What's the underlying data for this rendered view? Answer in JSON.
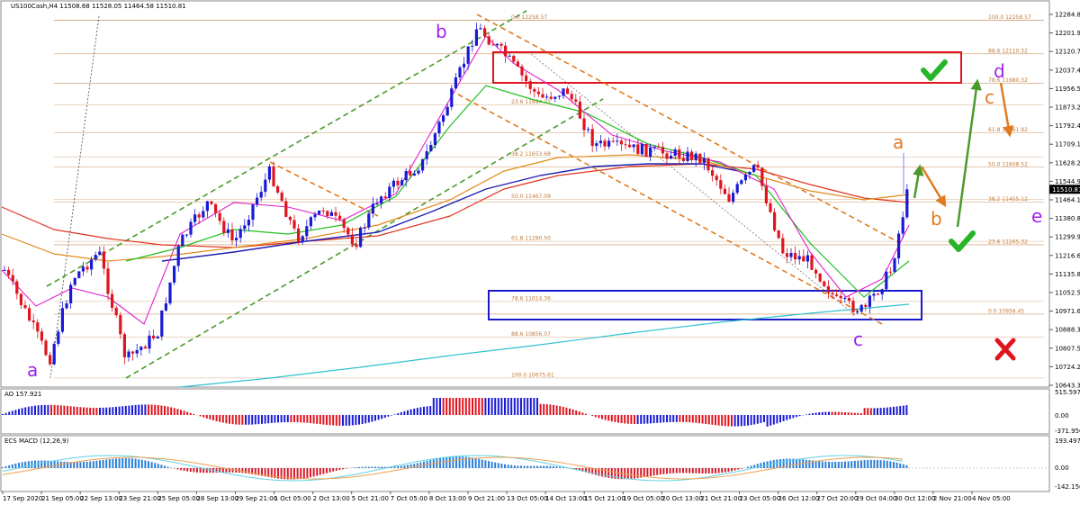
{
  "header": {
    "symbol_title": "US100Cash,H4  11508.68 11528.05 11464.58 11510.81",
    "ao_label": "AO 157.921",
    "macd_label": "ECS MACD (12,26,9)"
  },
  "chart_data": {
    "type": "candlestick",
    "instrument": "US100Cash",
    "timeframe": "H4",
    "ohlc_last": {
      "open": 11508.68,
      "high": 11528.05,
      "low": 11464.58,
      "close": 11510.81
    },
    "current_price_label": "11510.81",
    "price_axis": {
      "ylim": [
        10643.35,
        12284.86
      ],
      "ticks": [
        "12284.86",
        "12201.95",
        "12120.70",
        "12037.46",
        "11956.55",
        "11873.24",
        "11792.40",
        "11709.10",
        "11628.26",
        "11544.95",
        "11464.11",
        "11380.80",
        "11299.96",
        "11216.66",
        "11135.80",
        "11052.50",
        "10971.65",
        "10888.35",
        "10807.50",
        "10724.20",
        "10643.35"
      ]
    },
    "time_axis": [
      "17 Sep 2020",
      "21 Sep 05:00",
      "22 Sep 13:00",
      "23 Sep 21:00",
      "25 Sep 05:00",
      "28 Sep 13:00",
      "29 Sep 21:00",
      "1 Oct 05:00",
      "2 Oct 13:00",
      "5 Oct 21:00",
      "7 Oct 05:00",
      "8 Oct 13:00",
      "9 Oct 21:00",
      "13 Oct 05:00",
      "14 Oct 13:00",
      "15 Oct 21:00",
      "19 Oct 05:00",
      "20 Oct 13:00",
      "21 Oct 21:00",
      "23 Oct 05:00",
      "26 Oct 12:00",
      "27 Oct 20:00",
      "29 Oct 04:00",
      "30 Oct 12:00",
      "2 Nov 21:00",
      "4 Nov 05:00"
    ],
    "fib_right": [
      {
        "label": "100.0 12258.57",
        "value": 12258.57
      },
      {
        "label": "88.6 12110.32",
        "value": 12110.32
      },
      {
        "label": "78.6 11980.32",
        "value": 11980.32
      },
      {
        "label": "61.8 11761.92",
        "value": 11761.92
      },
      {
        "label": "50.0 11608.52",
        "value": 11608.52
      },
      {
        "label": "38.2 11455.12",
        "value": 11455.12
      },
      {
        "label": "23.6 11265.32",
        "value": 11265.32
      },
      {
        "label": "0.0 10958.45",
        "value": 10958.45
      }
    ],
    "fib_mid": [
      {
        "label": "0.0 12258.57",
        "value": 12258.57
      },
      {
        "label": "23.6 11884.35",
        "value": 11884.35
      },
      {
        "label": "38.2 11653.68",
        "value": 11653.68
      },
      {
        "label": "50.0 11467.09",
        "value": 11467.09
      },
      {
        "label": "61.8 11280.50",
        "value": 11280.5
      },
      {
        "label": "78.6 11014.36",
        "value": 11014.36
      },
      {
        "label": "88.6 10856.07",
        "value": 10856.07
      },
      {
        "label": "100.0 10675.61",
        "value": 10675.61
      }
    ],
    "wave_labels": [
      {
        "text": "a",
        "color": "#a020f0"
      },
      {
        "text": "b",
        "color": "#a020f0"
      },
      {
        "text": "c",
        "color": "#a020f0"
      },
      {
        "text": "a",
        "color": "#e07b20"
      },
      {
        "text": "b",
        "color": "#e07b20"
      },
      {
        "text": "c",
        "color": "#e07b20"
      },
      {
        "text": "d",
        "color": "#a020f0"
      },
      {
        "text": "e",
        "color": "#a020f0"
      }
    ],
    "ao_axis": [
      "515.597",
      "0.00",
      "-371.956"
    ],
    "macd_axis": [
      "193.4972",
      "0.00",
      "-142.1562"
    ],
    "colors": {
      "bull": "#1a1ad6",
      "bear": "#e0141e",
      "zone_red": "#e0141e",
      "zone_blue": "#1a1acc",
      "check": "#28b428",
      "cross": "#e0141e",
      "fib": "#c07a3a"
    }
  }
}
